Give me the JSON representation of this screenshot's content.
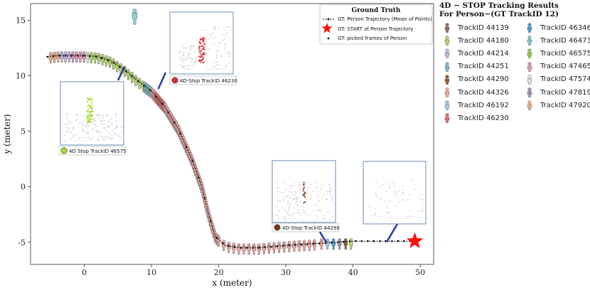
{
  "chart_data": {
    "type": "scatter",
    "xlabel": "x (meter)",
    "ylabel": "y (meter)",
    "xlim": [
      -8,
      52
    ],
    "ylim": [
      -7,
      16.5
    ],
    "xticks": [
      0,
      10,
      20,
      30,
      40,
      50
    ],
    "yticks": [
      -5,
      0,
      5,
      10,
      15
    ],
    "grid": false,
    "legend": {
      "title": "Ground Truth",
      "placement": "top-right",
      "entries": [
        {
          "label": "GT: Person Trajectory (Mean of Points)",
          "marker": "line-dot"
        },
        {
          "label": "GT: START of Person Trajectory",
          "marker": "star"
        },
        {
          "label": "GT: picked frames of Person",
          "marker": "dot"
        }
      ]
    },
    "gt_trajectory": [
      [
        -5.5,
        11.7
      ],
      [
        -4,
        11.8
      ],
      [
        -2,
        11.8
      ],
      [
        0,
        11.8
      ],
      [
        2,
        11.7
      ],
      [
        4,
        11.3
      ],
      [
        6,
        10.5
      ],
      [
        8,
        9.5
      ],
      [
        10,
        8.6
      ],
      [
        12,
        7.2
      ],
      [
        14,
        5.2
      ],
      [
        16,
        2.5
      ],
      [
        17.5,
        0
      ],
      [
        18.5,
        -2.5
      ],
      [
        19.5,
        -4.5
      ],
      [
        21,
        -5.3
      ],
      [
        23,
        -5.5
      ],
      [
        26,
        -5.5
      ],
      [
        30,
        -5.3
      ],
      [
        35,
        -5.1
      ],
      [
        40,
        -4.9
      ],
      [
        45,
        -4.9
      ],
      [
        49,
        -4.9
      ]
    ],
    "gt_start": [
      49.2,
      -4.9
    ],
    "start_person_marker": [
      7.5,
      15.3
    ],
    "tracks": [
      {
        "name": "TrackID 44139",
        "color": "#8c6d62",
        "x_range": [
          47,
          48
        ]
      },
      {
        "name": "TrackID 44180",
        "color": "#b5d86a",
        "x_range": [
          40,
          41
        ]
      },
      {
        "name": "TrackID 44214",
        "color": "#c5b6e3",
        "x_range": [
          -3,
          -2
        ]
      },
      {
        "name": "TrackID 44251",
        "color": "#7fb3d5",
        "x_range": [
          9.5,
          10
        ]
      },
      {
        "name": "TrackID 44290",
        "color": "#8b5a3c",
        "x_range": [
          38.5,
          40
        ]
      },
      {
        "name": "TrackID 44326",
        "color": "#f2a7a7",
        "x_range": [
          -5,
          37
        ]
      },
      {
        "name": "TrackID 46192",
        "color": "#a8c8e8",
        "x_range": [
          36,
          37
        ]
      },
      {
        "name": "TrackID 46230",
        "color": "#e06c6c",
        "x_range": [
          10.5,
          12
        ]
      },
      {
        "name": "TrackID 46346",
        "color": "#3aa0d8",
        "x_range": [
          37,
          38
        ]
      },
      {
        "name": "TrackID 46473",
        "color": "#7ecbd1",
        "x_range": [
          9,
          10
        ]
      },
      {
        "name": "TrackID 46575",
        "color": "#9ccc3c",
        "x_range": [
          1,
          9
        ]
      },
      {
        "name": "TrackID 47465",
        "color": "#e79ab8",
        "x_range": [
          -2,
          0
        ]
      },
      {
        "name": "TrackID 47574",
        "color": "#d8ecd8",
        "x_range": [
          0,
          1
        ]
      },
      {
        "name": "TrackID 47819",
        "color": "#a68fb5",
        "x_range": [
          38,
          39
        ]
      },
      {
        "name": "TrackID 47920",
        "color": "#f0b48a",
        "x_range": [
          -4,
          -3
        ]
      }
    ],
    "insets": [
      {
        "label": "4D-Stop TrackID 46230",
        "dot_color": "#e03030",
        "anchor": [
          11,
          8.8
        ]
      },
      {
        "label": "4D Stop TrackID 46575",
        "dot_color": "#a8d838",
        "anchor": [
          6,
          10.8
        ]
      },
      {
        "label": "4D-Stop TrackID 44290",
        "dot_color": "#7a3b1a",
        "anchor": [
          36,
          -5
        ]
      },
      {
        "label": "",
        "dot_color": "",
        "anchor": [
          45,
          -5
        ]
      }
    ]
  },
  "side_legend": {
    "title_line1": "4D − STOP Tracking Results",
    "title_line2": "For Person−(GT TrackID 12)"
  }
}
